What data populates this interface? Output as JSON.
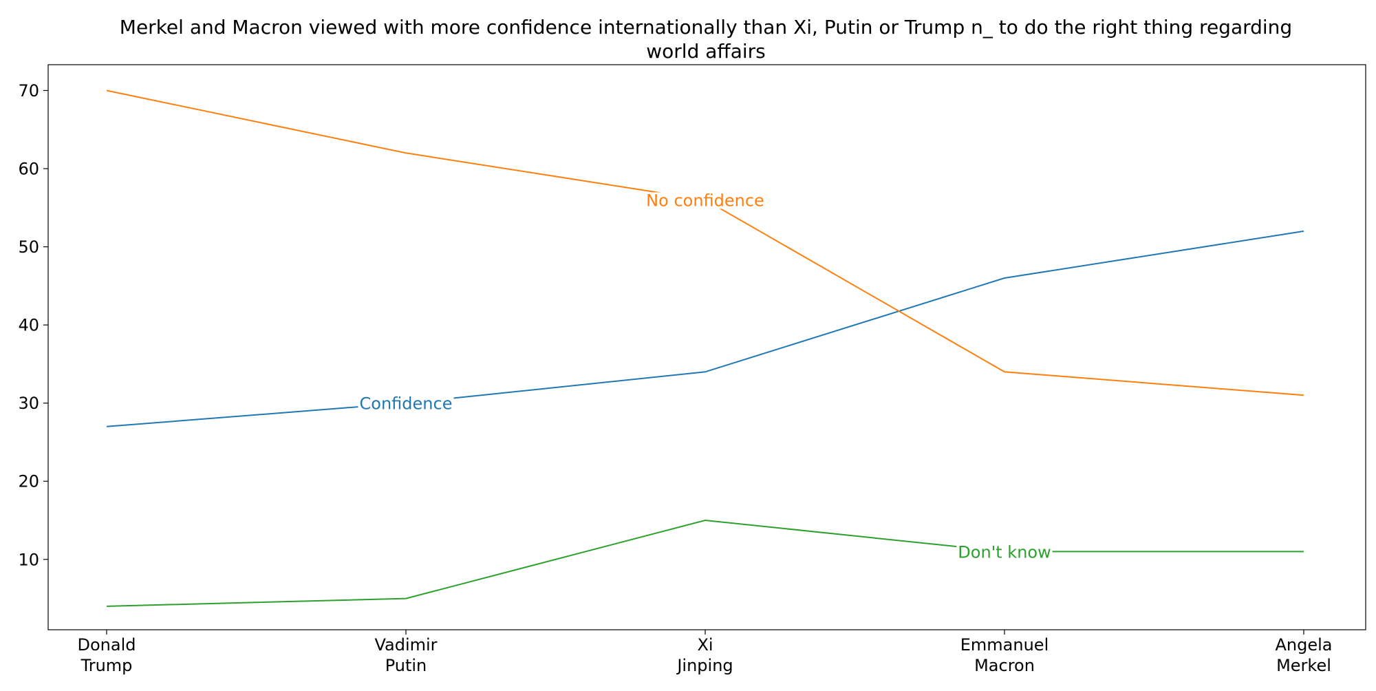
{
  "chart_data": {
    "type": "line",
    "title_lines": [
      "Merkel and Macron viewed with more confidence internationally than Xi, Putin or Trump n_ to do the right thing regarding",
      "world affairs"
    ],
    "categories": [
      [
        "Donald",
        "Trump"
      ],
      [
        "Vadimir",
        "Putin"
      ],
      [
        "Xi",
        "Jinping"
      ],
      [
        "Emmanuel",
        "Macron"
      ],
      [
        "Angela",
        "Merkel"
      ]
    ],
    "ylim": [
      1,
      73.3
    ],
    "yticks": [
      10,
      20,
      30,
      40,
      50,
      60,
      70
    ],
    "grid": false,
    "legend": "none",
    "series": [
      {
        "name": "Confidence",
        "color": "#1f77b4",
        "values": [
          27,
          30,
          34,
          46,
          52
        ],
        "label_at": 1
      },
      {
        "name": "No confidence",
        "color": "#ff7f0e",
        "values": [
          70,
          62,
          56,
          34,
          31
        ],
        "label_at": 2
      },
      {
        "name": "Don't know",
        "color": "#2ca02c",
        "values": [
          4,
          5,
          15,
          11,
          11
        ],
        "label_at": 3
      }
    ]
  }
}
